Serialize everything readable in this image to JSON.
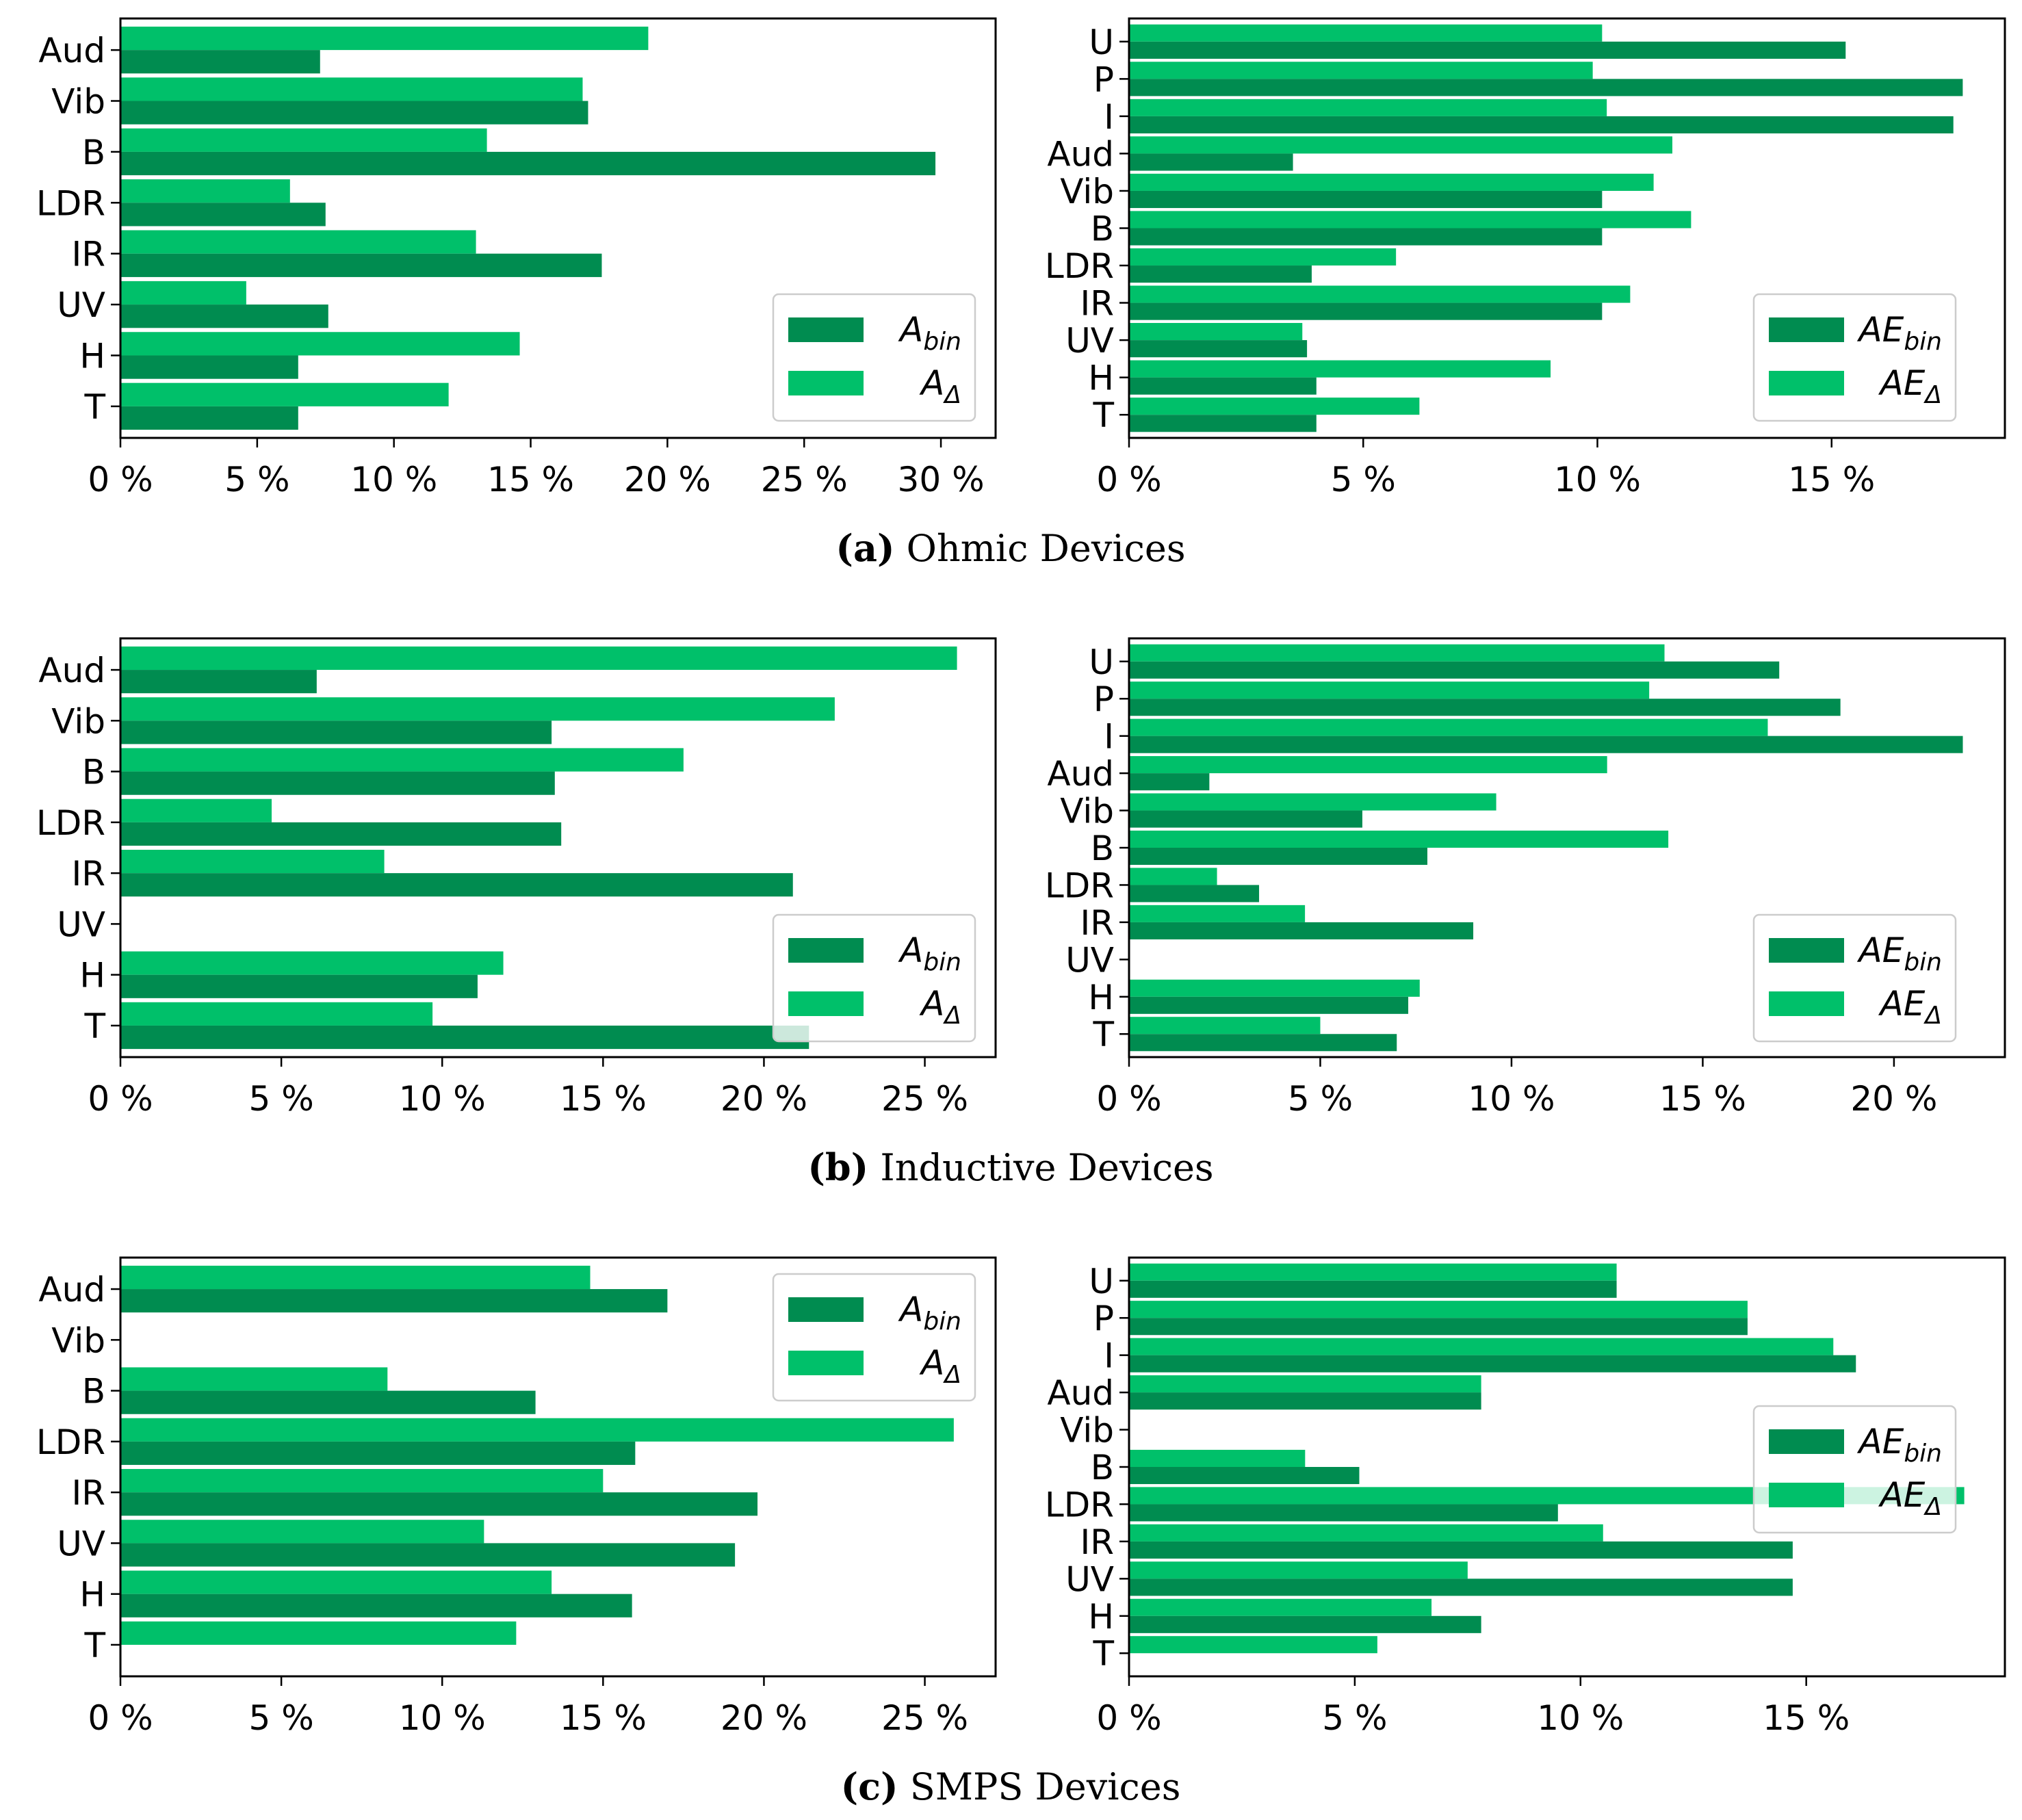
{
  "colors": {
    "bin": "#008c50",
    "delta": "#00c06a"
  },
  "captions": [
    {
      "letter": "(a)",
      "text": "Ohmic Devices"
    },
    {
      "letter": "(b)",
      "text": "Inductive Devices"
    },
    {
      "letter": "(c)",
      "text": "SMPS Devices"
    }
  ],
  "chart_data": [
    {
      "id": "a-left",
      "type": "bar",
      "orientation": "horizontal",
      "categories": [
        "Aud",
        "Vib",
        "B",
        "LDR",
        "IR",
        "UV",
        "H",
        "T"
      ],
      "series": [
        {
          "name": "A_bin",
          "label_main": "A",
          "label_sub": "bin",
          "values": [
            7.3,
            17.1,
            29.8,
            7.5,
            17.6,
            7.6,
            6.5,
            6.5
          ]
        },
        {
          "name": "A_Δ",
          "label_main": "A",
          "label_sub": "Δ",
          "values": [
            19.3,
            16.9,
            13.4,
            6.2,
            13.0,
            4.6,
            14.6,
            12.0
          ]
        }
      ],
      "xlim": [
        0,
        32
      ],
      "xticks": [
        0,
        5,
        10,
        15,
        20,
        25,
        30
      ],
      "xtick_labels": [
        "0 %",
        "5 %",
        "10 %",
        "15 %",
        "20 %",
        "25 %",
        "30 %"
      ],
      "legend": "lower-right"
    },
    {
      "id": "a-right",
      "type": "bar",
      "orientation": "horizontal",
      "categories": [
        "U",
        "P",
        "I",
        "Aud",
        "Vib",
        "B",
        "LDR",
        "IR",
        "UV",
        "H",
        "T"
      ],
      "series": [
        {
          "name": "AE_bin",
          "label_main": "AE",
          "label_sub": "bin",
          "values": [
            15.3,
            17.8,
            17.6,
            3.5,
            10.1,
            10.1,
            3.9,
            10.1,
            3.8,
            4.0,
            4.0
          ]
        },
        {
          "name": "AE_Δ",
          "label_main": "AE",
          "label_sub": "Δ",
          "values": [
            10.1,
            9.9,
            10.2,
            11.6,
            11.2,
            12.0,
            5.7,
            10.7,
            3.7,
            9.0,
            6.2
          ]
        }
      ],
      "xlim": [
        0,
        18.7
      ],
      "xticks": [
        0,
        5,
        10,
        15
      ],
      "xtick_labels": [
        "0 %",
        "5 %",
        "10 %",
        "15 %"
      ],
      "legend": "lower-right"
    },
    {
      "id": "b-left",
      "type": "bar",
      "orientation": "horizontal",
      "categories": [
        "Aud",
        "Vib",
        "B",
        "LDR",
        "IR",
        "UV",
        "H",
        "T"
      ],
      "series": [
        {
          "name": "A_bin",
          "label_main": "A",
          "label_sub": "bin",
          "values": [
            6.1,
            13.4,
            13.5,
            13.7,
            20.9,
            0,
            11.1,
            21.4
          ]
        },
        {
          "name": "A_Δ",
          "label_main": "A",
          "label_sub": "Δ",
          "values": [
            26.0,
            22.2,
            17.5,
            4.7,
            8.2,
            0,
            11.9,
            9.7
          ]
        }
      ],
      "xlim": [
        0,
        27.2
      ],
      "xticks": [
        0,
        5,
        10,
        15,
        20,
        25
      ],
      "xtick_labels": [
        "0 %",
        "5 %",
        "10 %",
        "15 %",
        "20 %",
        "25 %"
      ],
      "legend": "lower-right"
    },
    {
      "id": "b-right",
      "type": "bar",
      "orientation": "horizontal",
      "categories": [
        "U",
        "P",
        "I",
        "Aud",
        "Vib",
        "B",
        "LDR",
        "IR",
        "UV",
        "H",
        "T"
      ],
      "series": [
        {
          "name": "AE_bin",
          "label_main": "AE",
          "label_sub": "bin",
          "values": [
            17.0,
            18.6,
            21.8,
            2.1,
            6.1,
            7.8,
            3.4,
            9.0,
            0,
            7.3,
            7.0
          ]
        },
        {
          "name": "AE_Δ",
          "label_main": "AE",
          "label_sub": "Δ",
          "values": [
            14.0,
            13.6,
            16.7,
            12.5,
            9.6,
            14.1,
            2.3,
            4.6,
            0,
            7.6,
            5.0
          ]
        }
      ],
      "xlim": [
        0,
        22.9
      ],
      "xticks": [
        0,
        5,
        10,
        15,
        20
      ],
      "xtick_labels": [
        "0 %",
        "5 %",
        "10 %",
        "15 %",
        "20 %"
      ],
      "legend": "lower-right"
    },
    {
      "id": "c-left",
      "type": "bar",
      "orientation": "horizontal",
      "categories": [
        "Aud",
        "Vib",
        "B",
        "LDR",
        "IR",
        "UV",
        "H",
        "T"
      ],
      "series": [
        {
          "name": "A_bin",
          "label_main": "A",
          "label_sub": "bin",
          "values": [
            17.0,
            0,
            12.9,
            16.0,
            19.8,
            19.1,
            15.9,
            0
          ]
        },
        {
          "name": "A_Δ",
          "label_main": "A",
          "label_sub": "Δ",
          "values": [
            14.6,
            0,
            8.3,
            25.9,
            15.0,
            11.3,
            13.4,
            12.3
          ]
        }
      ],
      "xlim": [
        0,
        27.2
      ],
      "xticks": [
        0,
        5,
        10,
        15,
        20,
        25
      ],
      "xtick_labels": [
        "0 %",
        "5 %",
        "10 %",
        "15 %",
        "20 %",
        "25 %"
      ],
      "legend": "upper-right"
    },
    {
      "id": "c-right",
      "type": "bar",
      "orientation": "horizontal",
      "categories": [
        "U",
        "P",
        "I",
        "Aud",
        "Vib",
        "B",
        "LDR",
        "IR",
        "UV",
        "H",
        "T"
      ],
      "series": [
        {
          "name": "AE_bin",
          "label_main": "AE",
          "label_sub": "bin",
          "values": [
            10.8,
            13.7,
            16.1,
            7.8,
            0,
            5.1,
            9.5,
            14.7,
            14.7,
            7.8,
            0
          ]
        },
        {
          "name": "AE_Δ",
          "label_main": "AE",
          "label_sub": "Δ",
          "values": [
            10.8,
            13.7,
            15.6,
            7.8,
            0,
            3.9,
            18.5,
            10.5,
            7.5,
            6.7,
            5.5
          ]
        }
      ],
      "xlim": [
        0,
        19.4
      ],
      "xticks": [
        0,
        5,
        10,
        15
      ],
      "xtick_labels": [
        "0 %",
        "5 %",
        "10 %",
        "15 %"
      ],
      "legend": "right"
    }
  ]
}
